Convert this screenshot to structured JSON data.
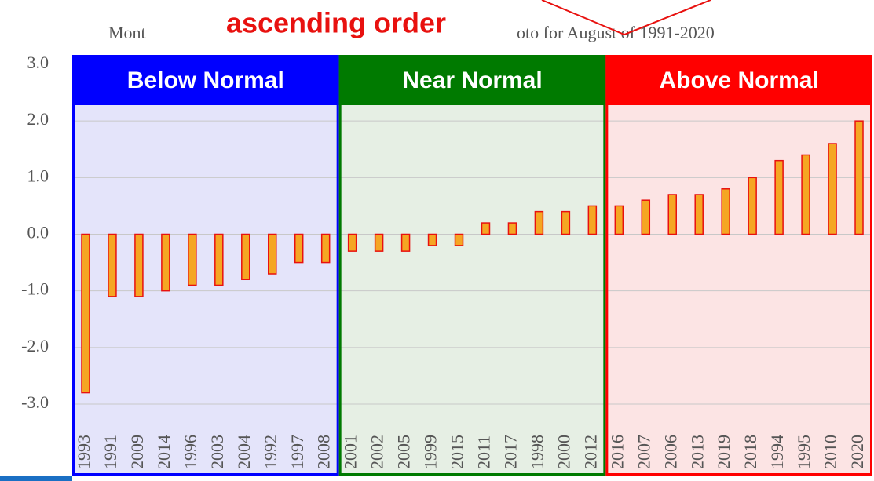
{
  "chart_data": {
    "type": "bar",
    "title_fragments": [
      "Mont",
      "oto for August of 1991-2020"
    ],
    "callout": "ascending order",
    "categories": [
      "1993",
      "1991",
      "2009",
      "2014",
      "1996",
      "2003",
      "2004",
      "1992",
      "1997",
      "2008",
      "2001",
      "2002",
      "2005",
      "1999",
      "2015",
      "2011",
      "2017",
      "1998",
      "2000",
      "2012",
      "2016",
      "2007",
      "2006",
      "2013",
      "2019",
      "2018",
      "1994",
      "1995",
      "2010",
      "2020"
    ],
    "values": [
      -2.8,
      -1.1,
      -1.1,
      -1.0,
      -0.9,
      -0.9,
      -0.8,
      -0.7,
      -0.5,
      -0.5,
      -0.3,
      -0.3,
      -0.3,
      -0.2,
      -0.2,
      0.2,
      0.2,
      0.4,
      0.4,
      0.5,
      0.5,
      0.6,
      0.7,
      0.7,
      0.8,
      1.0,
      1.3,
      1.4,
      1.6,
      2.0
    ],
    "color": "#f5a623",
    "edge_color": "#e8110f",
    "ylim": [
      -3,
      3
    ],
    "yticks": [
      {
        "value": 3,
        "label": "3.0"
      },
      {
        "value": 2,
        "label": "2.0"
      },
      {
        "value": 1,
        "label": "1.0"
      },
      {
        "value": 0,
        "label": "0.0"
      },
      {
        "value": -1,
        "label": "-1.0"
      },
      {
        "value": -2,
        "label": "-2.0"
      },
      {
        "value": -3,
        "label": "-3.0"
      }
    ],
    "grid": true,
    "regions": [
      {
        "name": "Below Normal",
        "color": "#0000ff",
        "background": "#e4e4fa"
      },
      {
        "name": "Near Normal",
        "color": "#007a00",
        "background": "#e6efe4"
      },
      {
        "name": "Above Normal",
        "color": "#ff0000",
        "background": "#fce4e4"
      }
    ]
  }
}
